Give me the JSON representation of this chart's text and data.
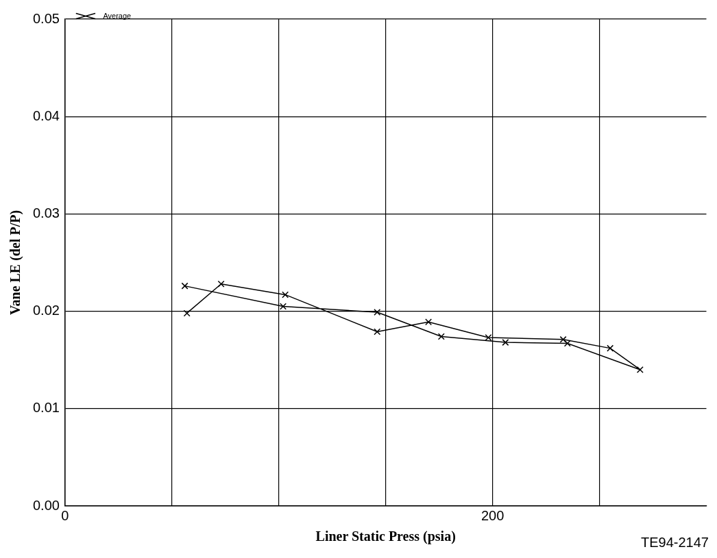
{
  "chart_data": {
    "type": "line",
    "xlabel": "Liner Static Press (psia)",
    "ylabel": "Vane LE (del P/P)",
    "x": [
      57,
      73,
      103,
      146,
      170,
      198,
      233,
      255,
      269,
      235,
      206,
      176,
      146,
      102,
      56
    ],
    "series": [
      {
        "name": "Average",
        "color": "#000000",
        "values": [
          0.0198,
          0.0228,
          0.0217,
          0.0179,
          0.0189,
          0.0173,
          0.0171,
          0.0162,
          0.014,
          0.0167,
          0.0168,
          0.0174,
          0.0199,
          0.0205,
          0.0226
        ]
      }
    ],
    "xlim": [
      0,
      300
    ],
    "xticks": [
      0,
      {
        "value": 50,
        "label": null
      },
      {
        "value": 100,
        "label": null
      },
      {
        "value": 150,
        "label": null
      },
      200,
      {
        "value": 250,
        "label": null
      }
    ],
    "ylim": [
      0,
      0.05
    ],
    "yticks": [
      {
        "value": 0,
        "label": "0.00"
      },
      {
        "value": 0.01,
        "label": "0.01"
      },
      {
        "value": 0.02,
        "label": "0.02"
      },
      {
        "value": 0.03,
        "label": "0.03"
      },
      {
        "value": 0.04,
        "label": "0.04"
      },
      {
        "value": 0.05,
        "label": "0.05"
      }
    ],
    "grid": true,
    "legend": "top left",
    "marker": "cross",
    "line_style": "solid",
    "annotations": [
      "TE94-2147"
    ]
  }
}
